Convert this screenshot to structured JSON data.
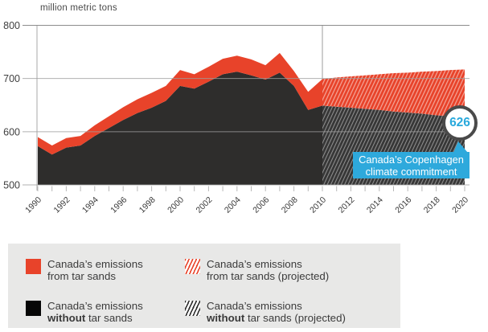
{
  "colors": {
    "tar_sands_red": "#e8432a",
    "without_tar_sands_black": "#2e2d2c",
    "projected_dark_bg": "#373737",
    "accent_blue": "#2ea9dc",
    "badge_ring_gray": "#4a4a4a",
    "grid_gray": "#9e9e9e",
    "legend_bg": "#e8e8e7"
  },
  "chart_data": {
    "type": "area",
    "title": "",
    "ylabel": "million metric tons",
    "ylim": [
      500,
      800
    ],
    "y_ticks": [
      800,
      700,
      600,
      500
    ],
    "x_range": [
      1990,
      2020
    ],
    "x_tick_labels": [
      1990,
      1992,
      1994,
      1996,
      1998,
      2000,
      2002,
      2004,
      2006,
      2008,
      2010,
      2012,
      2014,
      2016,
      2018,
      2020
    ],
    "grid": true,
    "divider_year": 2010,
    "historical": {
      "years": [
        1990,
        1991,
        1992,
        1993,
        1994,
        1995,
        1996,
        1997,
        1998,
        1999,
        2000,
        2001,
        2002,
        2003,
        2004,
        2005,
        2006,
        2007,
        2008,
        2009,
        2010
      ],
      "without_tar_sands": [
        573,
        557,
        570,
        574,
        592,
        607,
        622,
        635,
        645,
        658,
        686,
        681,
        694,
        708,
        713,
        706,
        698,
        711,
        686,
        641,
        649
      ],
      "from_tar_sands": [
        17,
        17,
        18,
        18,
        20,
        22,
        24,
        26,
        28,
        28,
        30,
        27,
        28,
        29,
        30,
        30,
        27,
        37,
        28,
        34,
        50
      ]
    },
    "projected": {
      "years": [
        2010,
        2011,
        2012,
        2013,
        2014,
        2015,
        2016,
        2017,
        2018,
        2019,
        2020
      ],
      "without_tar_sands": [
        649,
        647,
        645,
        643,
        641,
        638,
        636,
        634,
        631,
        629,
        626
      ],
      "from_tar_sands": [
        50,
        55,
        59,
        63,
        67,
        72,
        75,
        79,
        83,
        87,
        91
      ]
    },
    "annotation": {
      "value": "626",
      "callout_line1": "Canada’s Copenhagen",
      "callout_line2": "climate commitment"
    }
  },
  "legend": {
    "items": [
      {
        "key": "tar-sands",
        "line1": "Canada’s emissions",
        "line2_bold": "",
        "line2_rest": "from tar sands"
      },
      {
        "key": "tar-sands-projected",
        "line1": "Canada’s emissions",
        "line2_bold": "",
        "line2_rest": "from tar sands (projected)"
      },
      {
        "key": "without-tar-sands",
        "line1": "Canada’s emissions",
        "line2_bold": "without",
        "line2_rest": " tar sands"
      },
      {
        "key": "without-tar-sands-projected",
        "line1": "Canada’s emissions",
        "line2_bold": "without",
        "line2_rest": " tar sands (projected)"
      }
    ]
  }
}
